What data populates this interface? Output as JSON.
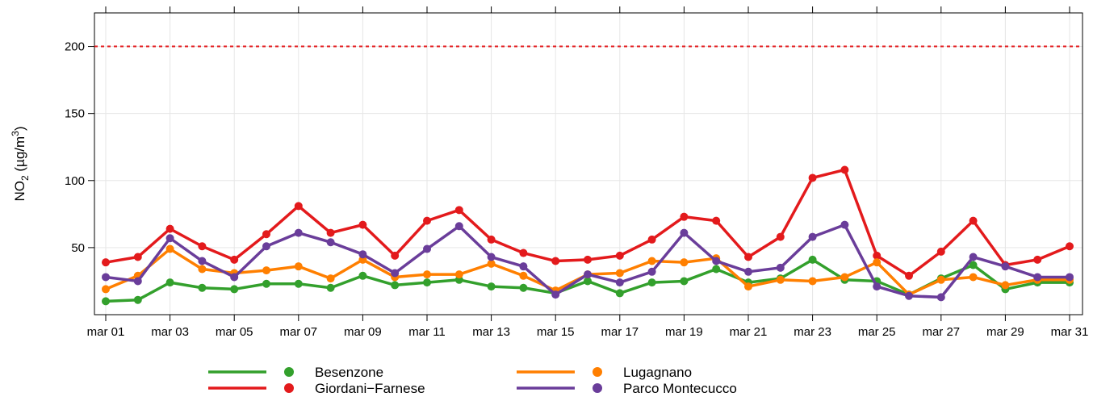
{
  "chart_data": {
    "type": "line",
    "ylabel": {
      "main": "NO",
      "sub": "2",
      "unit": "(µg/m",
      "sup": "3",
      "close": ")"
    },
    "categories": [
      "mar 01",
      null,
      "mar 03",
      null,
      "mar 05",
      null,
      "mar 07",
      null,
      "mar 09",
      null,
      "mar 11",
      null,
      "mar 13",
      null,
      "mar 15",
      null,
      "mar 17",
      null,
      "mar 19",
      null,
      "mar 21",
      null,
      "mar 23",
      null,
      "mar 25",
      null,
      "mar 27",
      null,
      "mar 29",
      null,
      "mar 31"
    ],
    "series": [
      {
        "name": "Besenzone",
        "color": "#33a02c",
        "values": [
          10,
          11,
          24,
          20,
          19,
          23,
          23,
          20,
          29,
          22,
          24,
          26,
          21,
          20,
          16,
          25,
          16,
          24,
          25,
          34,
          24,
          27,
          41,
          26,
          25,
          15,
          27,
          37,
          19,
          24,
          24
        ]
      },
      {
        "name": "Giordani−Farnese",
        "color": "#e31a1c",
        "values": [
          39,
          43,
          64,
          51,
          41,
          60,
          81,
          61,
          67,
          44,
          70,
          78,
          56,
          46,
          40,
          41,
          44,
          56,
          73,
          70,
          43,
          58,
          102,
          108,
          44,
          29,
          47,
          70,
          37,
          41,
          51
        ]
      },
      {
        "name": "Lugagnano",
        "color": "#ff7f00",
        "values": [
          19,
          29,
          49,
          34,
          31,
          33,
          36,
          27,
          41,
          28,
          30,
          30,
          38,
          29,
          18,
          30,
          31,
          40,
          39,
          42,
          21,
          26,
          25,
          28,
          39,
          15,
          26,
          28,
          22,
          26,
          26
        ]
      },
      {
        "name": "Parco Montecucco",
        "color": "#6a3d9a",
        "values": [
          28,
          25,
          57,
          40,
          28,
          51,
          61,
          54,
          45,
          31,
          49,
          66,
          43,
          36,
          15,
          30,
          24,
          32,
          61,
          40,
          32,
          35,
          58,
          67,
          21,
          14,
          13,
          43,
          36,
          28,
          28
        ]
      }
    ],
    "ylim": [
      0,
      225
    ],
    "yticks": [
      50,
      100,
      150,
      200
    ],
    "grid": true,
    "reference_line": {
      "value": 200,
      "color": "#e31a1c"
    },
    "legend": "bottom"
  }
}
